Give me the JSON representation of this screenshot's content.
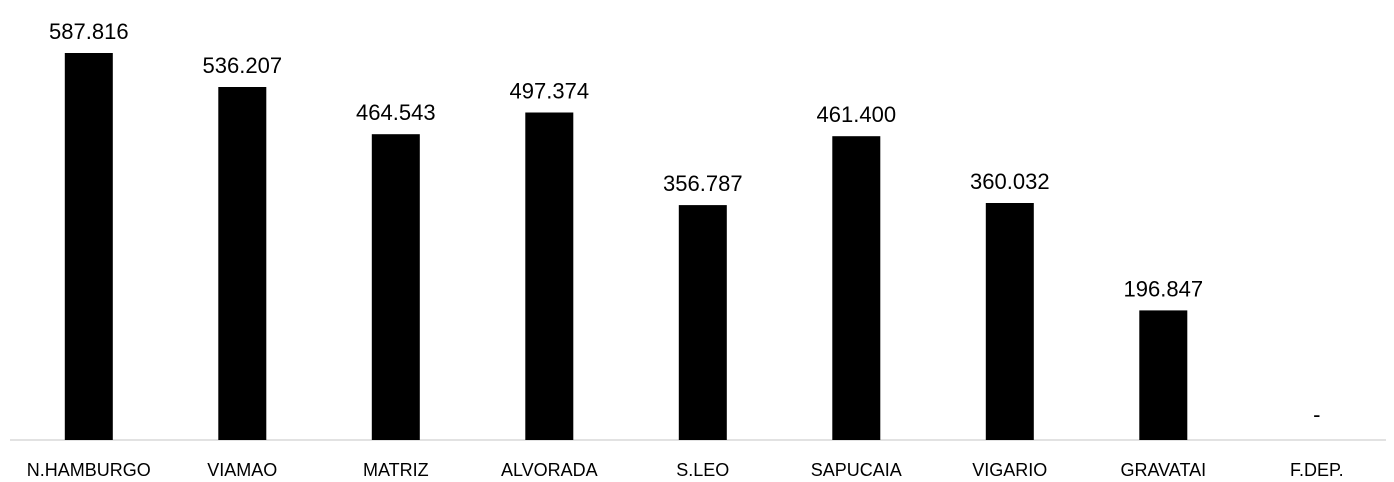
{
  "chart_data": {
    "type": "bar",
    "categories": [
      "N.HAMBURGO",
      "VIAMAO",
      "MATRIZ",
      "ALVORADA",
      "S.LEO",
      "SAPUCAIA",
      "VIGARIO",
      "GRAVATAI",
      "F.DEP."
    ],
    "values": [
      587816,
      536207,
      464543,
      497374,
      356787,
      461400,
      360032,
      196847,
      0
    ],
    "data_labels": [
      "587.816",
      "536.207",
      "464.543",
      "497.374",
      "356.787",
      "461.400",
      "360.032",
      "196.847",
      "-"
    ],
    "title": "",
    "xlabel": "",
    "ylabel": "",
    "ylim": [
      0,
      600000
    ],
    "grid": false,
    "legend": "none",
    "bar_color": "#000000",
    "axis_color": "#d9d9d9"
  }
}
